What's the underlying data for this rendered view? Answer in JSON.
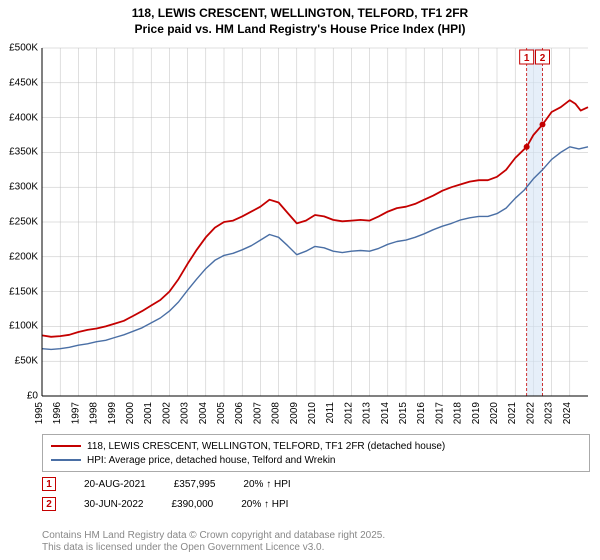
{
  "title": {
    "line1": "118, LEWIS CRESCENT, WELLINGTON, TELFORD, TF1 2FR",
    "line2": "Price paid vs. HM Land Registry's House Price Index (HPI)"
  },
  "chart": {
    "type": "line",
    "background_color": "#ffffff",
    "grid_color": "#bfbfbf",
    "axis_color": "#000000",
    "x_start": 1995,
    "x_end": 2025,
    "x_tick_step": 1,
    "x_ticks": [
      1995,
      1996,
      1997,
      1998,
      1999,
      2000,
      2001,
      2002,
      2003,
      2004,
      2005,
      2006,
      2007,
      2008,
      2009,
      2010,
      2011,
      2012,
      2013,
      2014,
      2015,
      2016,
      2017,
      2018,
      2019,
      2020,
      2021,
      2022,
      2023,
      2024
    ],
    "y_start": 0,
    "y_end": 500000,
    "y_tick_step": 50000,
    "y_tick_labels": [
      "£0",
      "£50K",
      "£100K",
      "£150K",
      "£200K",
      "£250K",
      "£300K",
      "£350K",
      "£400K",
      "£450K",
      "£500K"
    ],
    "label_fontsize": 10,
    "title_fontsize": 12,
    "series": [
      {
        "name": "property",
        "label": "118, LEWIS CRESCENT, WELLINGTON, TELFORD, TF1 2FR (detached house)",
        "color": "#c40000",
        "line_width": 1.8,
        "data": [
          [
            1995,
            87000
          ],
          [
            1995.5,
            85000
          ],
          [
            1996,
            86000
          ],
          [
            1996.5,
            88000
          ],
          [
            1997,
            92000
          ],
          [
            1997.5,
            95000
          ],
          [
            1998,
            97000
          ],
          [
            1998.5,
            100000
          ],
          [
            1999,
            104000
          ],
          [
            1999.5,
            108000
          ],
          [
            2000,
            115000
          ],
          [
            2000.5,
            122000
          ],
          [
            2001,
            130000
          ],
          [
            2001.5,
            138000
          ],
          [
            2002,
            150000
          ],
          [
            2002.5,
            168000
          ],
          [
            2003,
            190000
          ],
          [
            2003.5,
            210000
          ],
          [
            2004,
            228000
          ],
          [
            2004.5,
            242000
          ],
          [
            2005,
            250000
          ],
          [
            2005.5,
            252000
          ],
          [
            2006,
            258000
          ],
          [
            2006.5,
            265000
          ],
          [
            2007,
            272000
          ],
          [
            2007.5,
            282000
          ],
          [
            2008,
            278000
          ],
          [
            2008.5,
            263000
          ],
          [
            2009,
            248000
          ],
          [
            2009.5,
            252000
          ],
          [
            2010,
            260000
          ],
          [
            2010.5,
            258000
          ],
          [
            2011,
            253000
          ],
          [
            2011.5,
            251000
          ],
          [
            2012,
            252000
          ],
          [
            2012.5,
            253000
          ],
          [
            2013,
            252000
          ],
          [
            2013.5,
            258000
          ],
          [
            2014,
            265000
          ],
          [
            2014.5,
            270000
          ],
          [
            2015,
            272000
          ],
          [
            2015.5,
            276000
          ],
          [
            2016,
            282000
          ],
          [
            2016.5,
            288000
          ],
          [
            2017,
            295000
          ],
          [
            2017.5,
            300000
          ],
          [
            2018,
            304000
          ],
          [
            2018.5,
            308000
          ],
          [
            2019,
            310000
          ],
          [
            2019.5,
            310000
          ],
          [
            2020,
            315000
          ],
          [
            2020.5,
            325000
          ],
          [
            2021,
            342000
          ],
          [
            2021.63,
            357995
          ],
          [
            2022,
            375000
          ],
          [
            2022.5,
            390000
          ],
          [
            2023,
            408000
          ],
          [
            2023.5,
            415000
          ],
          [
            2024,
            425000
          ],
          [
            2024.3,
            420000
          ],
          [
            2024.6,
            410000
          ],
          [
            2025,
            415000
          ]
        ]
      },
      {
        "name": "hpi",
        "label": "HPI: Average price, detached house, Telford and Wrekin",
        "color": "#4a6fa5",
        "line_width": 1.4,
        "data": [
          [
            1995,
            68000
          ],
          [
            1995.5,
            67000
          ],
          [
            1996,
            68000
          ],
          [
            1996.5,
            70000
          ],
          [
            1997,
            73000
          ],
          [
            1997.5,
            75000
          ],
          [
            1998,
            78000
          ],
          [
            1998.5,
            80000
          ],
          [
            1999,
            84000
          ],
          [
            1999.5,
            88000
          ],
          [
            2000,
            93000
          ],
          [
            2000.5,
            98000
          ],
          [
            2001,
            105000
          ],
          [
            2001.5,
            112000
          ],
          [
            2002,
            122000
          ],
          [
            2002.5,
            135000
          ],
          [
            2003,
            152000
          ],
          [
            2003.5,
            168000
          ],
          [
            2004,
            183000
          ],
          [
            2004.5,
            195000
          ],
          [
            2005,
            202000
          ],
          [
            2005.5,
            205000
          ],
          [
            2006,
            210000
          ],
          [
            2006.5,
            216000
          ],
          [
            2007,
            224000
          ],
          [
            2007.5,
            232000
          ],
          [
            2008,
            228000
          ],
          [
            2008.5,
            216000
          ],
          [
            2009,
            203000
          ],
          [
            2009.5,
            208000
          ],
          [
            2010,
            215000
          ],
          [
            2010.5,
            213000
          ],
          [
            2011,
            208000
          ],
          [
            2011.5,
            206000
          ],
          [
            2012,
            208000
          ],
          [
            2012.5,
            209000
          ],
          [
            2013,
            208000
          ],
          [
            2013.5,
            212000
          ],
          [
            2014,
            218000
          ],
          [
            2014.5,
            222000
          ],
          [
            2015,
            224000
          ],
          [
            2015.5,
            228000
          ],
          [
            2016,
            233000
          ],
          [
            2016.5,
            239000
          ],
          [
            2017,
            244000
          ],
          [
            2017.5,
            248000
          ],
          [
            2018,
            253000
          ],
          [
            2018.5,
            256000
          ],
          [
            2019,
            258000
          ],
          [
            2019.5,
            258000
          ],
          [
            2020,
            262000
          ],
          [
            2020.5,
            270000
          ],
          [
            2021,
            284000
          ],
          [
            2021.5,
            296000
          ],
          [
            2022,
            312000
          ],
          [
            2022.5,
            325000
          ],
          [
            2023,
            340000
          ],
          [
            2023.5,
            350000
          ],
          [
            2024,
            358000
          ],
          [
            2024.5,
            355000
          ],
          [
            2025,
            358000
          ]
        ]
      }
    ],
    "markers": [
      {
        "id": "1",
        "date_label": "20-AUG-2021",
        "x": 2021.63,
        "y": 357995,
        "price_label": "£357,995",
        "note": "20% ↑ HPI"
      },
      {
        "id": "2",
        "date_label": "30-JUN-2022",
        "x": 2022.5,
        "y": 390000,
        "price_label": "£390,000",
        "note": "20% ↑ HPI"
      }
    ],
    "marker_vline_color": "#c40000",
    "marker_band_color": "#d6e4f5",
    "marker_box_border": "#c40000",
    "marker_box_text": "#c40000"
  },
  "legend": {
    "border_color": "#aaaaaa"
  },
  "footer": {
    "line1": "Contains HM Land Registry data © Crown copyright and database right 2025.",
    "line2": "This data is licensed under the Open Government Licence v3.0."
  }
}
